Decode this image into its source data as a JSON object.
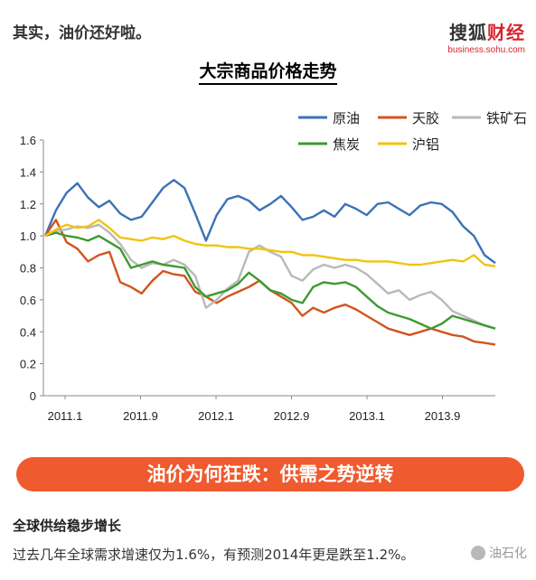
{
  "intro_text": "其实，油价还好啦。",
  "logo": {
    "main_left": "搜狐",
    "main_right": "财经",
    "sub": "business.sohu.com"
  },
  "chart_data": {
    "type": "line",
    "title": "大宗商品价格走势",
    "xlabel": "",
    "ylabel": "",
    "ylim": [
      0,
      1.6
    ],
    "yticks": [
      "1.6",
      "1.4",
      "1.2",
      "1.0",
      "0.8",
      "0.6",
      "0.4",
      "0.2",
      "0"
    ],
    "xticks": [
      "2011.1",
      "2011.9",
      "2012.1",
      "2012.9",
      "2013.1",
      "2013.9"
    ],
    "legend_position": "top-right",
    "grid": false,
    "series": [
      {
        "name": "原油",
        "color": "#3b72b6",
        "values": [
          1.0,
          1.16,
          1.27,
          1.33,
          1.24,
          1.18,
          1.22,
          1.14,
          1.1,
          1.12,
          1.21,
          1.3,
          1.35,
          1.3,
          1.14,
          0.97,
          1.13,
          1.23,
          1.25,
          1.22,
          1.16,
          1.2,
          1.25,
          1.18,
          1.1,
          1.12,
          1.16,
          1.12,
          1.2,
          1.17,
          1.13,
          1.2,
          1.21,
          1.17,
          1.13,
          1.19,
          1.21,
          1.2,
          1.15,
          1.06,
          1.0,
          0.88,
          0.83
        ]
      },
      {
        "name": "天胶",
        "color": "#d2541f",
        "values": [
          1.0,
          1.1,
          0.96,
          0.92,
          0.84,
          0.88,
          0.9,
          0.71,
          0.68,
          0.64,
          0.72,
          0.78,
          0.76,
          0.75,
          0.65,
          0.62,
          0.58,
          0.62,
          0.65,
          0.68,
          0.72,
          0.66,
          0.62,
          0.58,
          0.5,
          0.55,
          0.52,
          0.55,
          0.57,
          0.54,
          0.5,
          0.46,
          0.42,
          0.4,
          0.38,
          0.4,
          0.42,
          0.4,
          0.38,
          0.37,
          0.34,
          0.33,
          0.32
        ]
      },
      {
        "name": "铁矿石",
        "color": "#b9b9b9",
        "values": [
          1.0,
          1.03,
          1.04,
          1.06,
          1.05,
          1.07,
          1.02,
          0.95,
          0.85,
          0.8,
          0.83,
          0.82,
          0.85,
          0.82,
          0.75,
          0.55,
          0.6,
          0.67,
          0.72,
          0.9,
          0.94,
          0.9,
          0.87,
          0.75,
          0.72,
          0.79,
          0.82,
          0.8,
          0.82,
          0.8,
          0.76,
          0.7,
          0.64,
          0.66,
          0.6,
          0.63,
          0.65,
          0.6,
          0.53,
          0.5,
          0.47,
          0.44,
          0.42
        ]
      },
      {
        "name": "焦炭",
        "color": "#3c9b2f",
        "values": [
          1.0,
          1.02,
          1.0,
          0.99,
          0.97,
          1.0,
          0.96,
          0.92,
          0.8,
          0.82,
          0.84,
          0.82,
          0.81,
          0.8,
          0.68,
          0.62,
          0.64,
          0.66,
          0.7,
          0.77,
          0.72,
          0.66,
          0.64,
          0.6,
          0.58,
          0.68,
          0.71,
          0.7,
          0.71,
          0.68,
          0.62,
          0.56,
          0.52,
          0.5,
          0.48,
          0.45,
          0.42,
          0.45,
          0.5,
          0.48,
          0.46,
          0.44,
          0.42
        ]
      },
      {
        "name": "沪铝",
        "color": "#f1c40f",
        "values": [
          1.0,
          1.04,
          1.07,
          1.05,
          1.06,
          1.1,
          1.05,
          0.99,
          0.98,
          0.97,
          0.99,
          0.98,
          1.0,
          0.97,
          0.95,
          0.94,
          0.94,
          0.93,
          0.93,
          0.92,
          0.92,
          0.91,
          0.9,
          0.9,
          0.88,
          0.88,
          0.87,
          0.86,
          0.85,
          0.85,
          0.84,
          0.84,
          0.84,
          0.83,
          0.82,
          0.82,
          0.83,
          0.84,
          0.85,
          0.84,
          0.88,
          0.82,
          0.81
        ]
      }
    ]
  },
  "banner_text": "油价为何狂跌：供需之势逆转",
  "section_title": "全球供给稳步增长",
  "paragraph": "过去几年全球需求增速仅为1.6%，有预测2014年更是跌至1.2%。",
  "watermark": "油石化"
}
